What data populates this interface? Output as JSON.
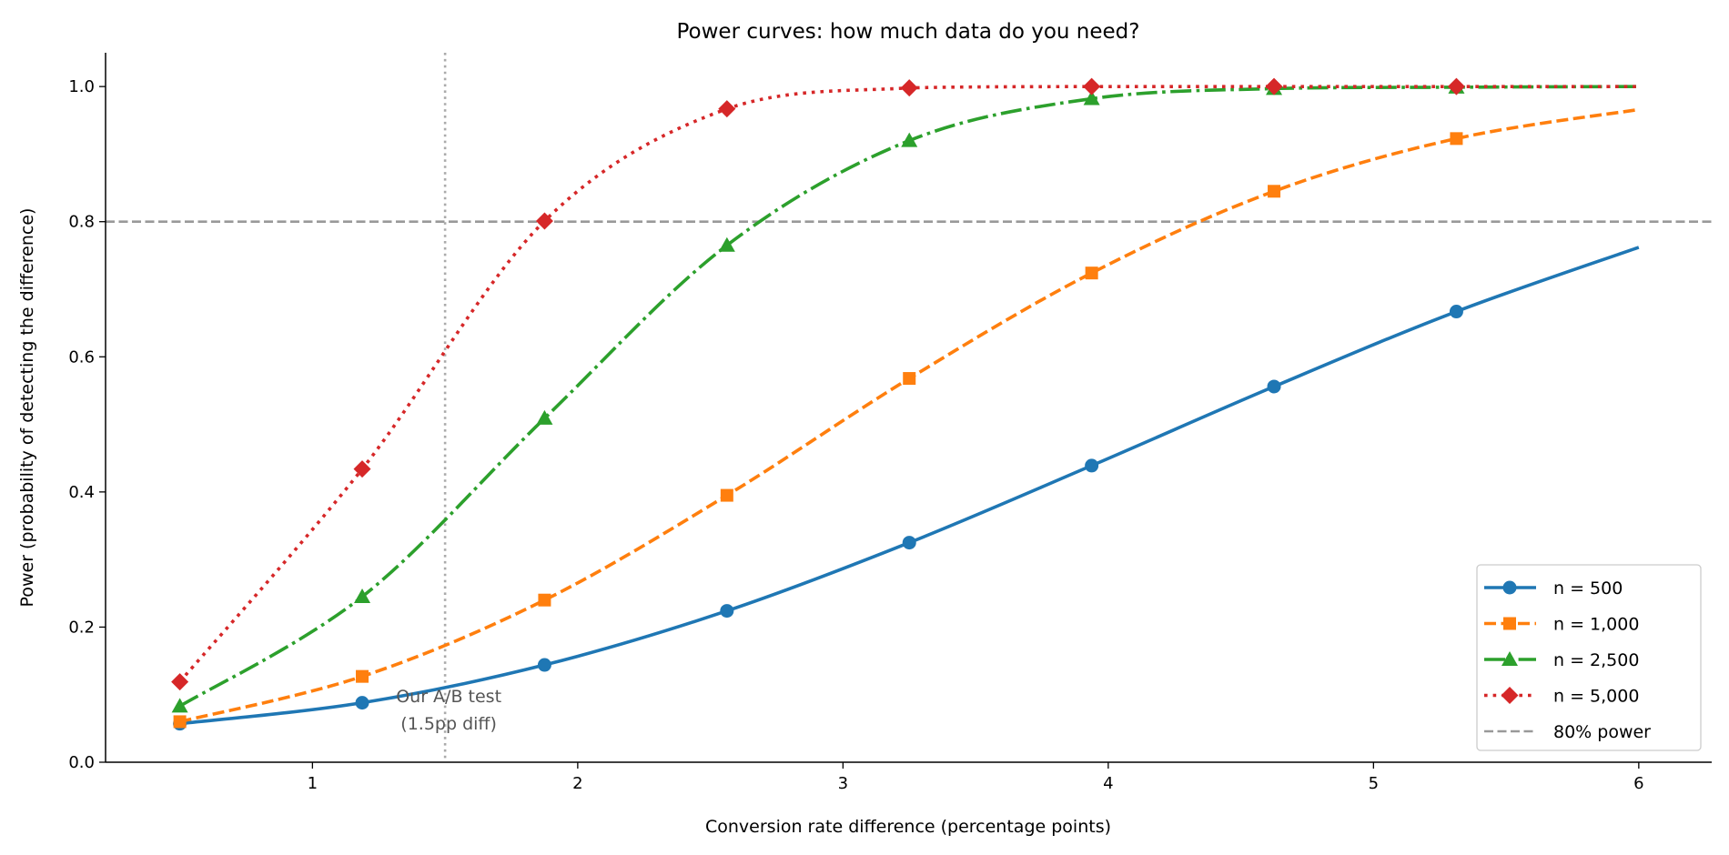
{
  "chart_data": {
    "type": "line",
    "title": "Power curves: how much data do you need?",
    "xlabel": "Conversion rate difference (percentage points)",
    "ylabel": "Power (probability of detecting the difference)",
    "xlim": [
      0.22,
      6.275
    ],
    "ylim": [
      0,
      1.05
    ],
    "xticks": [
      1,
      2,
      3,
      4,
      5,
      6
    ],
    "yticks": [
      0.0,
      0.2,
      0.4,
      0.6,
      0.8,
      1.0
    ],
    "ytick_labels": [
      "0.0",
      "0.2",
      "0.4",
      "0.6",
      "0.8",
      "1.0"
    ],
    "grid": false,
    "legend_placement": "lower-right",
    "x": [
      0.5,
      1.1875,
      1.875,
      2.5625,
      3.25,
      3.9375,
      4.625,
      5.3125,
      6.0
    ],
    "marker_count": 8,
    "series": [
      {
        "name": "n = 500",
        "color": "#1f77b4",
        "marker": "circle",
        "linestyle": "solid",
        "values": [
          0.057,
          0.088,
          0.144,
          0.224,
          0.325,
          0.439,
          0.556,
          0.667,
          0.762
        ]
      },
      {
        "name": "n = 1,000",
        "color": "#ff7f0e",
        "marker": "square",
        "linestyle": "dashed",
        "values": [
          0.06,
          0.127,
          0.24,
          0.395,
          0.568,
          0.724,
          0.845,
          0.923,
          0.966
        ]
      },
      {
        "name": "n = 2,500",
        "color": "#2ca02c",
        "marker": "triangle",
        "linestyle": "dashdot",
        "values": [
          0.083,
          0.245,
          0.509,
          0.765,
          0.92,
          0.982,
          0.997,
          0.999,
          1.0
        ]
      },
      {
        "name": "n = 5,000",
        "color": "#d62728",
        "marker": "diamond",
        "linestyle": "dotted",
        "values": [
          0.119,
          0.434,
          0.801,
          0.967,
          0.998,
          1.0,
          1.0,
          1.0,
          1.0
        ]
      }
    ],
    "reference_lines": {
      "horizontal": {
        "y": 0.8,
        "name": "80% power",
        "color": "#999999",
        "linestyle": "dashed"
      },
      "vertical": {
        "x": 1.5,
        "color": "#aaaaaa",
        "linestyle": "dotted"
      }
    },
    "annotation": {
      "line1": "Our A/B test",
      "line2": "(1.5pp diff)",
      "x": 1.5,
      "color": "#555555"
    }
  }
}
